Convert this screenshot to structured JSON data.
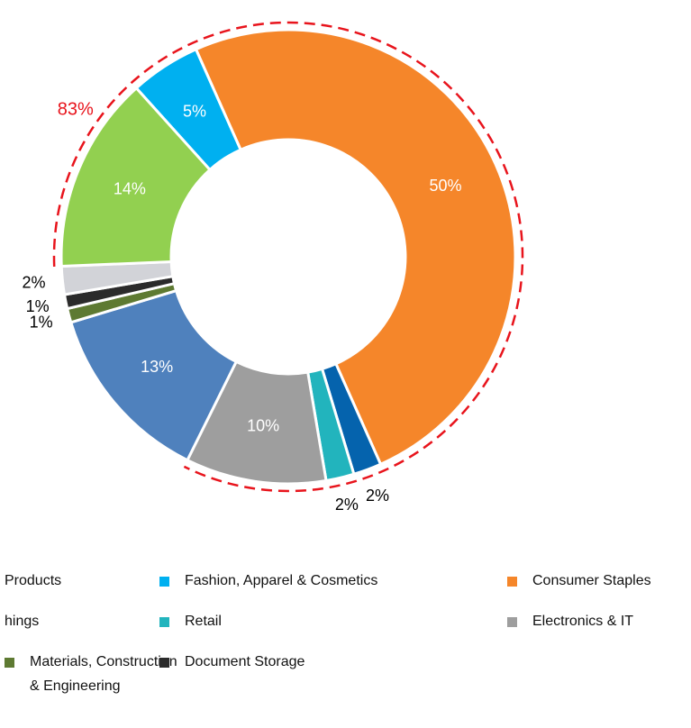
{
  "chart_data": {
    "type": "donut",
    "values": [
      50,
      2,
      2,
      10,
      13,
      1,
      1,
      2,
      14,
      5
    ],
    "value_labels": [
      "50%",
      "2%",
      "2%",
      "10%",
      "13%",
      "1%",
      "1%",
      "2%",
      "14%",
      "5%"
    ],
    "colors": [
      "#f5862a",
      "#0563ad",
      "#22b4bd",
      "#9e9e9e",
      "#4f81bd",
      "#5e7a32",
      "#2b2b2b",
      "#d2d3d8",
      "#92d050",
      "#00b0f0"
    ],
    "highlighted": [
      true,
      true,
      true,
      true,
      false,
      false,
      false,
      false,
      true,
      true
    ],
    "annotation": "83%",
    "legend": [
      {
        "name": [
          "Products"
        ]
      },
      {
        "name": [
          "Fashion, Apparel & Cosmetics"
        ],
        "color": "#00b0f0"
      },
      {
        "name": [
          "Consumer Staples"
        ],
        "color": "#f5862a"
      },
      {
        "name": [
          "hings"
        ]
      },
      {
        "name": [
          "Retail"
        ],
        "color": "#22b4bd"
      },
      {
        "name": [
          "Electronics & IT"
        ],
        "color": "#9e9e9e"
      },
      {
        "name": [
          "Materials, Construction",
          "& Engineering"
        ],
        "color": "#5e7a32"
      },
      {
        "name": [
          "Document Storage"
        ],
        "color": "#2b2b2b"
      }
    ]
  }
}
